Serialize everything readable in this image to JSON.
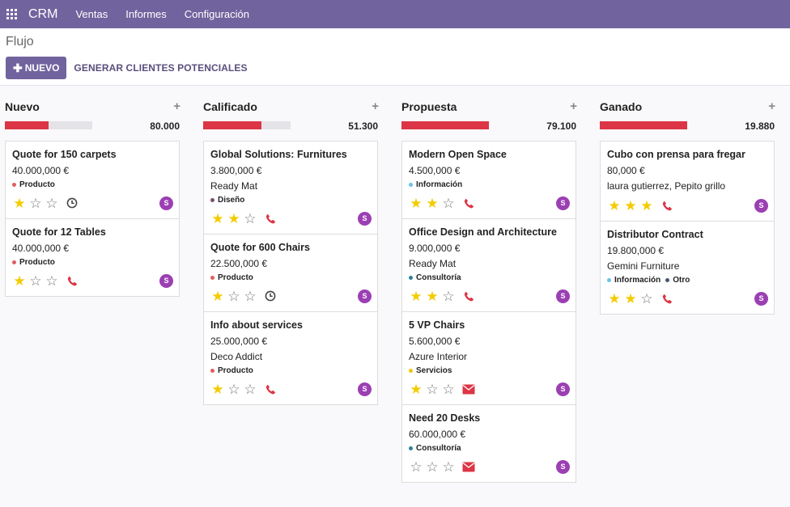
{
  "topbar": {
    "app_name": "CRM",
    "menu": [
      "Ventas",
      "Informes",
      "Configuración"
    ]
  },
  "control": {
    "breadcrumb": "Flujo",
    "new_button": "NUEVO",
    "generate_button": "GENERAR CLIENTES POTENCIALES"
  },
  "colors": {
    "navbar": "#71639e",
    "progress": "#dc3545",
    "star": "#f3cc00",
    "avatar": "#9b3fb3"
  },
  "columns": [
    {
      "title": "Nuevo",
      "total": "80.000",
      "progress": 0.5,
      "cards": [
        {
          "title": "Quote for 150 carpets",
          "amount": "40.000,000 €",
          "partner": "",
          "tags": [
            {
              "label": "Producto",
              "color": "#e05e5e"
            }
          ],
          "stars": 1,
          "activity": "clock-icon",
          "avatar": "S"
        },
        {
          "title": "Quote for 12 Tables",
          "amount": "40.000,000 €",
          "partner": "",
          "tags": [
            {
              "label": "Producto",
              "color": "#e05e5e"
            }
          ],
          "stars": 1,
          "activity": "phone-icon",
          "avatar": "S"
        }
      ]
    },
    {
      "title": "Calificado",
      "total": "51.300",
      "progress": 0.67,
      "cards": [
        {
          "title": "Global Solutions: Furnitures",
          "amount": "3.800,000 €",
          "partner": "Ready Mat",
          "tags": [
            {
              "label": "Diseño",
              "color": "#7d4d6e"
            }
          ],
          "stars": 2,
          "activity": "phone-icon",
          "avatar": "S"
        },
        {
          "title": "Quote for 600 Chairs",
          "amount": "22.500,000 €",
          "partner": "",
          "tags": [
            {
              "label": "Producto",
              "color": "#e05e5e"
            }
          ],
          "stars": 1,
          "activity": "clock-icon",
          "avatar": "S"
        },
        {
          "title": "Info about services",
          "amount": "25.000,000 €",
          "partner": "Deco Addict",
          "tags": [
            {
              "label": "Producto",
              "color": "#e05e5e"
            }
          ],
          "stars": 1,
          "activity": "phone-icon",
          "avatar": "S"
        }
      ]
    },
    {
      "title": "Propuesta",
      "total": "79.100",
      "progress": 1.0,
      "cards": [
        {
          "title": "Modern Open Space",
          "amount": "4.500,000 €",
          "partner": "",
          "tags": [
            {
              "label": "Información",
              "color": "#6cc1ed"
            }
          ],
          "stars": 2,
          "activity": "phone-icon",
          "avatar": "S"
        },
        {
          "title": "Office Design and Architecture",
          "amount": "9.000,000 €",
          "partner": "Ready Mat",
          "tags": [
            {
              "label": "Consultoría",
              "color": "#2c8397"
            }
          ],
          "stars": 2,
          "activity": "phone-icon",
          "avatar": "S"
        },
        {
          "title": "5 VP Chairs",
          "amount": "5.600,000 €",
          "partner": "Azure Interior",
          "tags": [
            {
              "label": "Servicios",
              "color": "#f4c609"
            }
          ],
          "stars": 1,
          "activity": "envelope-icon",
          "avatar": "S"
        },
        {
          "title": "Need 20 Desks",
          "amount": "60.000,000 €",
          "partner": "",
          "tags": [
            {
              "label": "Consultoría",
              "color": "#2c8397"
            }
          ],
          "stars": 0,
          "activity": "envelope-icon",
          "avatar": "S"
        }
      ]
    },
    {
      "title": "Ganado",
      "total": "19.880",
      "progress": 1.0,
      "cards": [
        {
          "title": "Cubo con prensa para fregar",
          "amount": "80,000 €",
          "partner": "laura gutierrez, Pepito grillo",
          "tags": [],
          "stars": 3,
          "activity": "phone-icon",
          "avatar": "S"
        },
        {
          "title": "Distributor Contract",
          "amount": "19.800,000 €",
          "partner": "Gemini Furniture",
          "tags": [
            {
              "label": "Información",
              "color": "#6cc1ed"
            },
            {
              "label": "Otro",
              "color": "#475577"
            }
          ],
          "stars": 2,
          "activity": "phone-icon",
          "avatar": "S"
        }
      ]
    }
  ]
}
